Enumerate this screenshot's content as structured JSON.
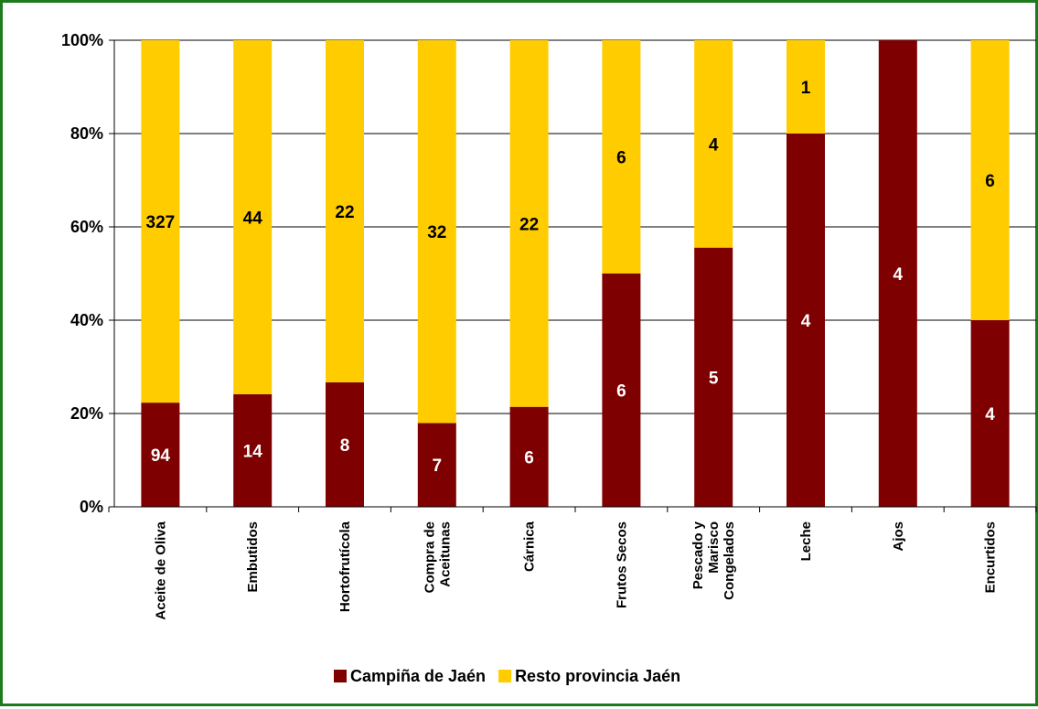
{
  "chart_data": {
    "type": "bar",
    "stacked": "percent",
    "categories": [
      [
        "Aceite de Oliva"
      ],
      [
        "Embutidos"
      ],
      [
        "Hortofrutícola"
      ],
      [
        "Compra de",
        "Aceitunas"
      ],
      [
        "Cárnica"
      ],
      [
        "Frutos Secos"
      ],
      [
        "Pescado y",
        "Marisco",
        "Congelados"
      ],
      [
        "Leche"
      ],
      [
        "Ajos"
      ],
      [
        "Encurtidos"
      ]
    ],
    "series": [
      {
        "name": "Campiña de Jaén",
        "color": "#7f0000",
        "label_color": "#ffffff",
        "values": [
          94,
          14,
          8,
          7,
          6,
          6,
          5,
          4,
          4,
          4
        ]
      },
      {
        "name": "Resto provincia Jaén",
        "color": "#ffcc00",
        "label_color": "#000000",
        "values": [
          327,
          44,
          22,
          32,
          22,
          6,
          4,
          1,
          0,
          6
        ]
      }
    ],
    "yticks": [
      "0%",
      "20%",
      "40%",
      "60%",
      "80%",
      "100%"
    ],
    "ylim": [
      0,
      100
    ],
    "grid": true,
    "legend_position": "bottom"
  }
}
